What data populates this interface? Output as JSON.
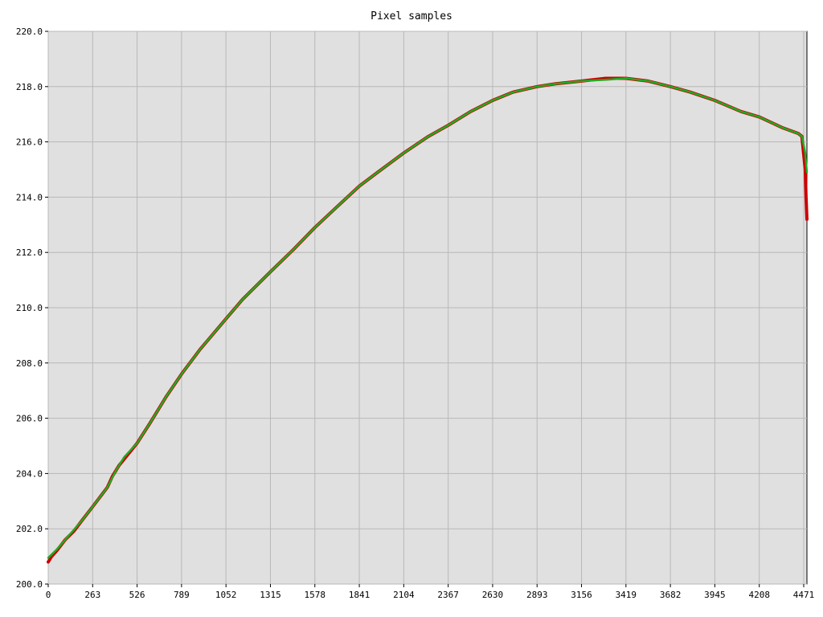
{
  "chart_data": {
    "type": "line",
    "title": "Pixel samples",
    "xlabel": "",
    "ylabel": "",
    "xlim": [
      0,
      4490
    ],
    "ylim": [
      200.0,
      220.0
    ],
    "x_ticks": [
      0,
      263,
      526,
      789,
      1052,
      1315,
      1578,
      1841,
      2104,
      2367,
      2630,
      2893,
      3156,
      3419,
      3682,
      3945,
      4208,
      4471
    ],
    "y_ticks": [
      "200.0",
      "202.0",
      "204.0",
      "206.0",
      "208.0",
      "210.0",
      "212.0",
      "214.0",
      "216.0",
      "218.0",
      "220.0"
    ],
    "grid": true,
    "background": "#e0e0e0",
    "series": [
      {
        "color": "#cc0000",
        "style": "noisy samples",
        "x": [
          0,
          20,
          50,
          100,
          150,
          200,
          263,
          300,
          350,
          380,
          420,
          526,
          600,
          700,
          789,
          900,
          1052,
          1150,
          1315,
          1450,
          1578,
          1700,
          1841,
          1950,
          2104,
          2250,
          2367,
          2500,
          2630,
          2750,
          2893,
          3000,
          3156,
          3300,
          3419,
          3550,
          3682,
          3800,
          3945,
          4100,
          4208,
          4350,
          4440,
          4460,
          4480,
          4485,
          4490
        ],
        "y": [
          200.8,
          201.0,
          201.2,
          201.6,
          201.9,
          202.3,
          202.8,
          203.1,
          203.5,
          203.9,
          204.3,
          205.1,
          205.8,
          206.8,
          207.6,
          208.5,
          209.6,
          210.3,
          211.3,
          212.1,
          212.9,
          213.6,
          214.4,
          214.9,
          215.6,
          216.2,
          216.6,
          217.1,
          217.5,
          217.8,
          218.0,
          218.1,
          218.2,
          218.3,
          218.3,
          218.2,
          218.0,
          217.8,
          217.5,
          217.1,
          216.9,
          216.5,
          216.3,
          216.2,
          215.0,
          214.0,
          213.2
        ]
      },
      {
        "color": "#22aa22",
        "style": "smoothed",
        "x": [
          0,
          50,
          100,
          150,
          200,
          263,
          300,
          350,
          400,
          450,
          526,
          600,
          700,
          789,
          900,
          1052,
          1150,
          1315,
          1450,
          1578,
          1700,
          1841,
          1950,
          2104,
          2250,
          2367,
          2500,
          2630,
          2750,
          2893,
          3000,
          3156,
          3300,
          3419,
          3550,
          3682,
          3800,
          3945,
          4100,
          4208,
          4350,
          4440,
          4460,
          4480,
          4490
        ],
        "y": [
          200.95,
          201.25,
          201.6,
          201.95,
          202.3,
          202.8,
          203.1,
          203.5,
          204.1,
          204.6,
          205.1,
          205.8,
          206.8,
          207.6,
          208.5,
          209.6,
          210.3,
          211.3,
          212.1,
          212.9,
          213.6,
          214.4,
          214.9,
          215.6,
          216.2,
          216.6,
          217.1,
          217.5,
          217.8,
          218.0,
          218.1,
          218.2,
          218.25,
          218.3,
          218.2,
          218.0,
          217.8,
          217.5,
          217.1,
          216.9,
          216.5,
          216.3,
          216.2,
          215.6,
          214.9
        ]
      }
    ]
  }
}
